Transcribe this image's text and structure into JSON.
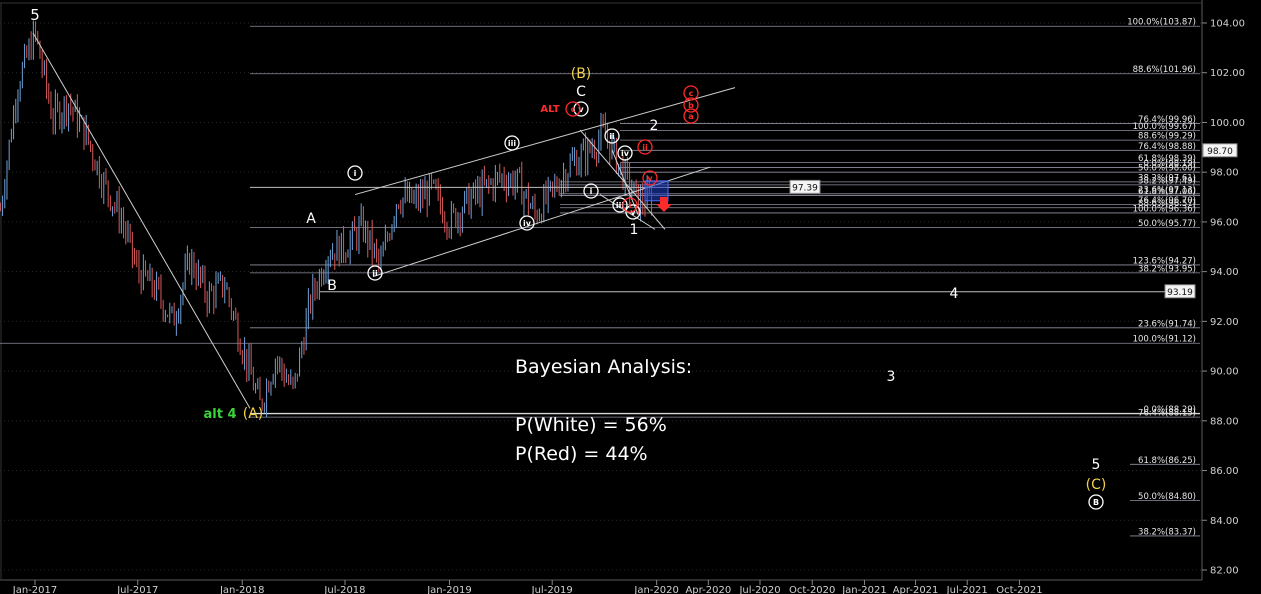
{
  "chart_data": {
    "type": "candlestick",
    "y_axis": {
      "min": 81.5,
      "max": 105,
      "ticks": [
        "104.00",
        "102.00",
        "100.00",
        "98.00",
        "96.00",
        "94.00",
        "92.00",
        "90.00",
        "88.00",
        "86.00",
        "84.00",
        "82.00"
      ]
    },
    "x_axis": {
      "ticks": [
        "Jan-2017",
        "Jul-2017",
        "Jan-2018",
        "Jul-2018",
        "Jan-2019",
        "Jul-2019",
        "Jan-2020",
        "Apr-2020",
        "Jul-2020",
        "Oct-2020",
        "Jan-2021",
        "Apr-2021",
        "Jul-2021",
        "Oct-2021"
      ]
    },
    "price_path": [
      [
        "2016-11-01",
        96.5
      ],
      [
        "2016-12-01",
        101.5
      ],
      [
        "2017-01-01",
        103.6
      ],
      [
        "2017-02-01",
        100.2
      ],
      [
        "2017-03-01",
        100.8
      ],
      [
        "2017-04-01",
        99.5
      ],
      [
        "2017-05-01",
        97.6
      ],
      [
        "2017-06-01",
        96.2
      ],
      [
        "2017-07-01",
        94.0
      ],
      [
        "2017-08-01",
        93.3
      ],
      [
        "2017-09-01",
        92.0
      ],
      [
        "2017-10-01",
        94.5
      ],
      [
        "2017-11-01",
        93.0
      ],
      [
        "2017-12-01",
        93.5
      ],
      [
        "2018-01-01",
        91.0
      ],
      [
        "2018-02-01",
        88.6
      ],
      [
        "2018-03-01",
        90.5
      ],
      [
        "2018-04-01",
        89.2
      ],
      [
        "2018-05-01",
        92.8
      ],
      [
        "2018-06-01",
        94.8
      ],
      [
        "2018-07-01",
        95.0
      ],
      [
        "2018-08-01",
        95.8
      ],
      [
        "2018-09-01",
        94.2
      ],
      [
        "2018-10-01",
        97.0
      ],
      [
        "2018-11-01",
        96.8
      ],
      [
        "2018-12-01",
        97.3
      ],
      [
        "2019-01-01",
        96.0
      ],
      [
        "2019-02-01",
        96.8
      ],
      [
        "2019-03-01",
        97.3
      ],
      [
        "2019-04-01",
        97.8
      ],
      [
        "2019-05-01",
        97.6
      ],
      [
        "2019-06-01",
        96.3
      ],
      [
        "2019-07-01",
        97.2
      ],
      [
        "2019-08-01",
        98.3
      ],
      [
        "2019-09-01",
        98.8
      ],
      [
        "2019-10-01",
        99.6
      ],
      [
        "2019-11-01",
        98.0
      ],
      [
        "2019-12-01",
        96.8
      ],
      [
        "2020-01-01",
        97.0
      ],
      [
        "2020-02-01",
        98.9
      ],
      [
        "2020-02-15",
        98.7
      ]
    ],
    "current_price": "98.70",
    "price_labels": [
      "97.39",
      "93.19"
    ],
    "fib_levels": [
      {
        "label": "100.0%(103.87)",
        "value": 103.87
      },
      {
        "label": "88.6%(101.96)",
        "value": 101.96
      },
      {
        "label": "76.4%(99.96)",
        "value": 99.96
      },
      {
        "label": "100.0%(99.67)",
        "value": 99.67
      },
      {
        "label": "88.6%(99.29)",
        "value": 99.29
      },
      {
        "label": "76.4%(98.88)",
        "value": 98.88
      },
      {
        "label": "61.8%(98.39)",
        "value": 98.39
      },
      {
        "label": "0.0%(98.19)",
        "value": 98.19
      },
      {
        "label": "50.0%(98.00)",
        "value": 98.0
      },
      {
        "label": "38.2%(97.61)",
        "value": 97.61
      },
      {
        "label": "38.2%(97.49)",
        "value": 97.49
      },
      {
        "label": "23.6%(97.13)",
        "value": 97.13
      },
      {
        "label": "61.8%(97.06)",
        "value": 97.06
      },
      {
        "label": "76.4%(96.70)",
        "value": 96.7
      },
      {
        "label": "88.6%(96.57)",
        "value": 96.57
      },
      {
        "label": "100.0%(96.36)",
        "value": 96.36
      },
      {
        "label": "50.0%(95.77)",
        "value": 95.77
      },
      {
        "label": "123.6%(94.27)",
        "value": 94.27
      },
      {
        "label": "38.2%(93.95)",
        "value": 93.95
      },
      {
        "label": "23.6%(91.74)",
        "value": 91.74
      },
      {
        "label": "100.0%(91.12)",
        "value": 91.12
      },
      {
        "label": "76.4%(88.15)",
        "value": 88.15
      },
      {
        "label": "0.0%(88.29)",
        "value": 88.29
      },
      {
        "label": "61.8%(86.25)",
        "value": 86.25
      },
      {
        "label": "50.0%(84.80)",
        "value": 84.8
      },
      {
        "label": "38.2%(83.37)",
        "value": 83.37
      }
    ],
    "wave_labels": {
      "top_5": "5",
      "alt4": "alt 4",
      "A_paren": "(A)",
      "A": "A",
      "B": "B",
      "B_paren": "(B)",
      "C": "C",
      "alt": "ALT",
      "i": "i",
      "ii": "ii",
      "iii": "iii",
      "iv": "iv",
      "v": "v",
      "one": "1",
      "two": "2",
      "three": "3",
      "four": "4",
      "five": "5",
      "C_paren": "(C)",
      "B_circ": "B",
      "red_c": "c",
      "red_b": "b",
      "red_a": "a",
      "red_v": "v",
      "red_ii": "ii",
      "red_i": "i"
    }
  },
  "annotation": {
    "title": "Bayesian Analysis:",
    "p_white": "P(White) = 56%",
    "p_red": "P(Red) = 44%"
  },
  "colors": {
    "background": "#000000",
    "candle_up": "#6fa2d8",
    "candle_down": "#d95b5b",
    "guide": "#cfcfcf",
    "fib": "#8f8f9f",
    "yellow": "#f2d24a",
    "green": "#3ad43a",
    "red": "#ff2a2a"
  }
}
